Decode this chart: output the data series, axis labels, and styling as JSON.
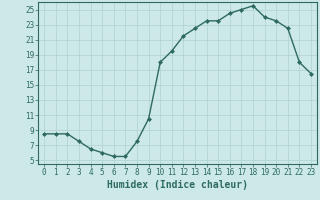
{
  "x": [
    0,
    1,
    2,
    3,
    4,
    5,
    6,
    7,
    8,
    9,
    10,
    11,
    12,
    13,
    14,
    15,
    16,
    17,
    18,
    19,
    20,
    21,
    22,
    23
  ],
  "y": [
    8.5,
    8.5,
    8.5,
    7.5,
    6.5,
    6,
    5.5,
    5.5,
    7.5,
    10.5,
    18,
    19.5,
    21.5,
    22.5,
    23.5,
    23.5,
    24.5,
    25,
    25.5,
    24,
    23.5,
    22.5,
    18,
    16.5
  ],
  "line_color": "#2e6b5e",
  "marker": "D",
  "marker_size": 2,
  "bg_color": "#cde8e8",
  "grid_color": "#b0d0d0",
  "xlabel": "Humidex (Indice chaleur)",
  "xlabel_fontsize": 7,
  "ylim": [
    4.5,
    26
  ],
  "xlim": [
    -0.5,
    23.5
  ],
  "yticks": [
    5,
    7,
    9,
    11,
    13,
    15,
    17,
    19,
    21,
    23,
    25
  ],
  "xticks": [
    0,
    1,
    2,
    3,
    4,
    5,
    6,
    7,
    8,
    9,
    10,
    11,
    12,
    13,
    14,
    15,
    16,
    17,
    18,
    19,
    20,
    21,
    22,
    23
  ],
  "tick_fontsize": 5.5,
  "spine_color": "#2e6b5e",
  "line_width": 1.0
}
